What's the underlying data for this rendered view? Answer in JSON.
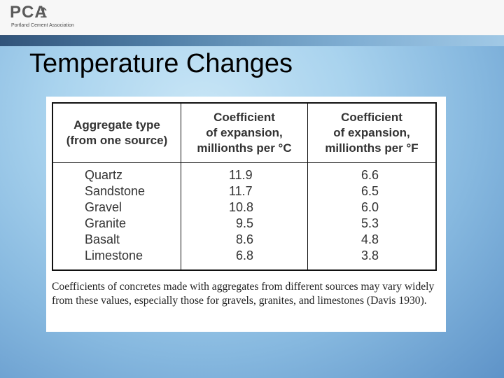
{
  "logo": {
    "letters": "PCA",
    "tagline": "Portland Cement Association"
  },
  "slide": {
    "title": "Temperature Changes"
  },
  "table": {
    "headers": [
      [
        "Aggregate type",
        "(from one source)"
      ],
      [
        "Coefficient",
        "of expansion,",
        "millionths per °C"
      ],
      [
        "Coefficient",
        "of expansion,",
        "millionths per °F"
      ]
    ],
    "rows": [
      {
        "type": "Quartz",
        "c": "11.9",
        "f": "6.6"
      },
      {
        "type": "Sandstone",
        "c": "11.7",
        "f": "6.5"
      },
      {
        "type": "Gravel",
        "c": "10.8",
        "f": "6.0"
      },
      {
        "type": "Granite",
        "c": "9.5",
        "f": "5.3"
      },
      {
        "type": "Basalt",
        "c": "8.6",
        "f": "4.8"
      },
      {
        "type": "Limestone",
        "c": "6.8",
        "f": "3.8"
      }
    ]
  },
  "caption": "Coefficients of concretes made with aggregates from different sources may vary widely from these values, especially those for gravels, granites, and limestones (Davis 1930)."
}
